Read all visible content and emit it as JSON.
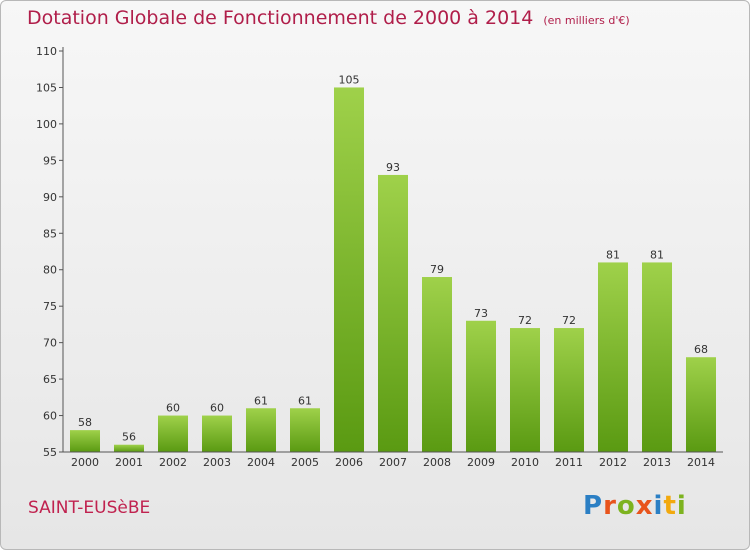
{
  "header": {
    "title": "Dotation Globale de Fonctionnement de 2000 à 2014",
    "subtitle": "(en milliers d'€)"
  },
  "commune": "SAINT-EUSèBE",
  "logo": {
    "text": "Proxiti",
    "letter_colors": [
      "#2b7fc4",
      "#e8541c",
      "#7db31f",
      "#e8541c",
      "#2b7fc4",
      "#f2a90e",
      "#7db31f"
    ]
  },
  "chart_data": {
    "type": "bar",
    "title": "Dotation Globale de Fonctionnement de 2000 à 2014",
    "subtitle": "(en milliers d'€)",
    "xlabel": "",
    "ylabel": "",
    "categories": [
      "2000",
      "2001",
      "2002",
      "2003",
      "2004",
      "2005",
      "2006",
      "2007",
      "2008",
      "2009",
      "2010",
      "2011",
      "2012",
      "2013",
      "2014"
    ],
    "values": [
      58,
      56,
      60,
      60,
      61,
      61,
      105,
      93,
      79,
      73,
      72,
      72,
      81,
      81,
      68
    ],
    "ylim": [
      55,
      110
    ],
    "yticks": [
      55,
      60,
      65,
      70,
      75,
      80,
      85,
      90,
      95,
      100,
      105,
      110
    ],
    "grid": false,
    "bar_color_top": "#9fd14a",
    "bar_color_bottom": "#5a9a12"
  }
}
